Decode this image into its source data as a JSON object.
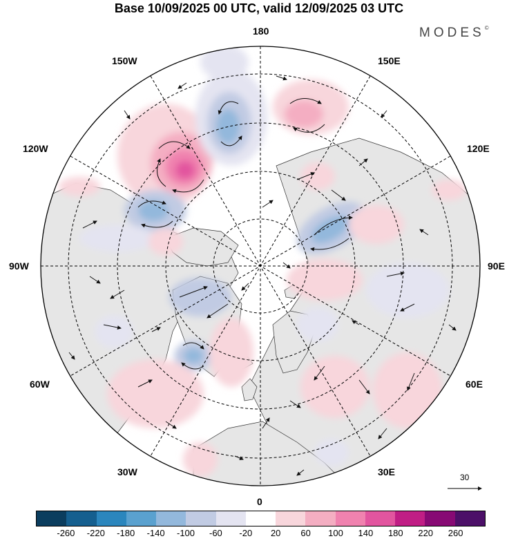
{
  "title": "Base 10/09/2025 00 UTC, valid 12/09/2025 03 UTC",
  "brand": {
    "name": "MODES",
    "mark": "©"
  },
  "map": {
    "projection": "north polar stereographic",
    "longitude_labels": {
      "top": "180",
      "bottom": "0",
      "left": "90W",
      "right": "90E",
      "upper_left_1": "150W",
      "upper_left_2": "120W",
      "upper_right_1": "150E",
      "upper_right_2": "120E",
      "lower_left_1": "60W",
      "lower_left_2": "30W",
      "lower_right_1": "60E",
      "lower_right_2": "30E"
    },
    "vector_scale_label": "30"
  },
  "colorbar": {
    "colors": [
      "#0b3d5e",
      "#155f8f",
      "#2b86bd",
      "#5aa1cf",
      "#93b8dc",
      "#c1cbe3",
      "#e4e4f1",
      "#ffffff",
      "#f8d6dc",
      "#f4aec2",
      "#f082af",
      "#e2559f",
      "#c01e85",
      "#870a74",
      "#4c1068"
    ],
    "ticks": [
      "-260",
      "-220",
      "-180",
      "-140",
      "-100",
      "-60",
      "-20",
      "20",
      "60",
      "100",
      "140",
      "180",
      "220",
      "260"
    ]
  }
}
